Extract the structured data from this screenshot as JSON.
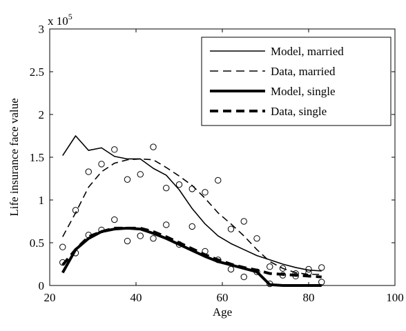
{
  "chart_data": {
    "type": "line",
    "title": "",
    "xlabel": "Age",
    "ylabel": "Life insurance face value",
    "y_multiplier_label": {
      "base": "x 10",
      "exponent": "5"
    },
    "xlim": [
      20,
      100
    ],
    "ylim": [
      0,
      300000
    ],
    "x_ticks": [
      20,
      40,
      60,
      80,
      100
    ],
    "x_tick_labels": [
      "20",
      "40",
      "60",
      "80",
      "100"
    ],
    "y_ticks": [
      0,
      50000,
      100000,
      150000,
      200000,
      250000,
      300000
    ],
    "y_tick_labels": [
      "0",
      "0.5",
      "1",
      "1.5",
      "2",
      "2.5",
      "3"
    ],
    "grid": false,
    "legend_position": "top-right",
    "series": [
      {
        "name": "Model, married",
        "style": "solid",
        "weight": "thin",
        "color": "#000000",
        "x": [
          23,
          26,
          29,
          32,
          35,
          38,
          41,
          44,
          47,
          50,
          53,
          56,
          59,
          62,
          65,
          68,
          71,
          74,
          77,
          80,
          83
        ],
        "y": [
          152000,
          175000,
          158000,
          161000,
          151000,
          148000,
          148000,
          137000,
          129000,
          112000,
          90000,
          72000,
          58000,
          49000,
          42000,
          35000,
          30000,
          25000,
          21000,
          18000,
          17000
        ]
      },
      {
        "name": "Data, married",
        "style": "dashed",
        "weight": "thin",
        "color": "#000000",
        "x": [
          23,
          26,
          29,
          32,
          35,
          38,
          41,
          44,
          47,
          50,
          53,
          56,
          59,
          62,
          65,
          68,
          71,
          74,
          77,
          80,
          83
        ],
        "y": [
          57000,
          85000,
          115000,
          133000,
          143000,
          147000,
          148000,
          147000,
          138000,
          128000,
          117000,
          102000,
          85000,
          72000,
          58000,
          42000,
          28000,
          20000,
          15000,
          13000,
          13000
        ]
      },
      {
        "name": "Model, single",
        "style": "solid",
        "weight": "thick",
        "color": "#000000",
        "x": [
          23,
          26,
          29,
          32,
          35,
          38,
          41,
          44,
          47,
          50,
          53,
          56,
          59,
          62,
          65,
          68,
          71,
          74,
          77,
          80,
          83
        ],
        "y": [
          15000,
          42000,
          55000,
          63000,
          66000,
          67000,
          66000,
          61000,
          55000,
          48000,
          41000,
          34000,
          28000,
          24000,
          20000,
          16000,
          1000,
          0,
          0,
          0,
          0
        ]
      },
      {
        "name": "Data, single",
        "style": "dashed",
        "weight": "thick",
        "color": "#000000",
        "x": [
          23,
          26,
          29,
          32,
          35,
          38,
          41,
          44,
          47,
          50,
          53,
          56,
          59,
          62,
          65,
          68,
          71,
          74,
          77,
          80,
          83
        ],
        "y": [
          24000,
          42000,
          57000,
          63000,
          67000,
          67000,
          67000,
          63000,
          57000,
          50000,
          43000,
          36000,
          30000,
          25000,
          21000,
          18000,
          14000,
          13000,
          12000,
          11000,
          10000
        ]
      }
    ],
    "scatter_points": {
      "marker": "circle",
      "x": [
        23,
        23,
        26,
        26,
        29,
        29,
        32,
        32,
        35,
        35,
        38,
        38,
        41,
        41,
        44,
        44,
        47,
        47,
        50,
        50,
        53,
        53,
        56,
        56,
        59,
        59,
        62,
        62,
        65,
        65,
        68,
        68,
        71,
        71,
        74,
        74,
        77,
        77,
        80,
        80,
        83,
        83
      ],
      "y": [
        45000,
        27000,
        88000,
        38000,
        133000,
        59000,
        142000,
        65000,
        159000,
        77000,
        124000,
        52000,
        130000,
        58000,
        162000,
        55000,
        114000,
        71000,
        118000,
        48000,
        113000,
        69000,
        109000,
        40000,
        123000,
        30000,
        66000,
        19000,
        75000,
        10000,
        55000,
        16000,
        22000,
        2000,
        20000,
        12000,
        11000,
        14000,
        19000,
        15000,
        21000,
        4000
      ]
    }
  }
}
